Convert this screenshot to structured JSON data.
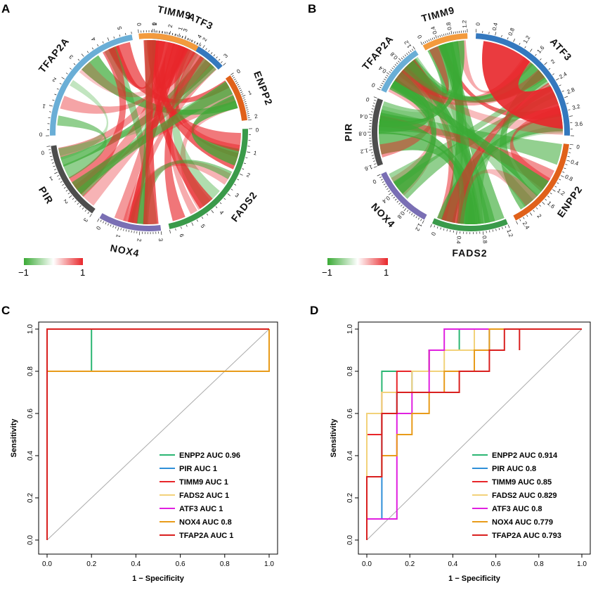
{
  "figure": {
    "panel_labels": [
      "A",
      "B",
      "C",
      "D"
    ],
    "colorbar_labels": [
      "−1",
      "1"
    ],
    "colors": {
      "negative": "#3aaa35",
      "positive": "#e8262a",
      "gray": "#aaaaaa"
    }
  },
  "chart_data": [
    {
      "panel": "A",
      "type": "chord",
      "title": "",
      "sectors": [
        {
          "name": "ATF3",
          "color": "#3478be",
          "max": 3.6,
          "ticks": [
            "0",
            "1",
            "2",
            "3"
          ]
        },
        {
          "name": "ENPP2",
          "color": "#e0611a",
          "max": 2.6,
          "ticks": [
            "0",
            "1",
            "2"
          ]
        },
        {
          "name": "FADS2",
          "color": "#3a9a4a",
          "max": 6.5,
          "ticks": [
            "0",
            "1",
            "2",
            "3",
            "4",
            "5",
            "6"
          ]
        },
        {
          "name": "NOX4",
          "color": "#7a6fb4",
          "max": 3.3,
          "ticks": [
            "3",
            "2",
            "1",
            "0"
          ]
        },
        {
          "name": "PIR",
          "color": "#4d4d4d",
          "max": 3.5,
          "ticks": [
            "3",
            "2",
            "1",
            "0"
          ]
        },
        {
          "name": "TFAP2A",
          "color": "#6aaed6",
          "max": 5.4,
          "ticks": [
            "0",
            "1",
            "2",
            "3",
            "4",
            "5"
          ]
        },
        {
          "name": "TIMM9",
          "color": "#f39a3c",
          "max": 4.4,
          "ticks": [
            "0",
            "1",
            "2",
            "3",
            "4"
          ]
        }
      ],
      "colorbar": {
        "min": -1,
        "max": 1
      }
    },
    {
      "panel": "B",
      "type": "chord",
      "title": "",
      "sectors": [
        {
          "name": "ATF3",
          "color": "#3478be",
          "max": 3.8,
          "ticks": [
            "0",
            "0.4",
            "0.8",
            "1.2",
            "1.6",
            "2",
            "2.4",
            "2.8",
            "3.2",
            "3.6"
          ]
        },
        {
          "name": "ENPP2",
          "color": "#e0611a",
          "max": 2.6,
          "ticks": [
            "0",
            "0.4",
            "0.8",
            "1.2",
            "1.6",
            "2",
            "2.4"
          ]
        },
        {
          "name": "FADS2",
          "color": "#3a9a4a",
          "max": 1.4,
          "ticks": [
            "1.2",
            "0.8",
            "0.4",
            "0"
          ]
        },
        {
          "name": "NOX4",
          "color": "#7a6fb4",
          "max": 1.4,
          "ticks": [
            "1.2",
            "0.8",
            "0.4",
            "0"
          ]
        },
        {
          "name": "PIR",
          "color": "#4d4d4d",
          "max": 1.7,
          "ticks": [
            "1.6",
            "1.2",
            "0.8",
            "0.4",
            "0"
          ]
        },
        {
          "name": "TFAP2A",
          "color": "#6aaed6",
          "max": 1.3,
          "ticks": [
            "0",
            "0.4",
            "0.8",
            "1.2"
          ]
        },
        {
          "name": "TIMM9",
          "color": "#f39a3c",
          "max": 1.3,
          "ticks": [
            "0",
            "0.4",
            "0.8",
            "1.2"
          ]
        }
      ],
      "colorbar": {
        "min": -1,
        "max": 1
      }
    },
    {
      "panel": "C",
      "type": "line",
      "title": "",
      "xlabel": "1 − Specificity",
      "ylabel": "Sensitivity",
      "xlim": [
        0,
        1
      ],
      "ylim": [
        0,
        1
      ],
      "xticks": [
        "0.0",
        "0.2",
        "0.4",
        "0.6",
        "0.8",
        "1.0"
      ],
      "yticks": [
        "0.0",
        "0.2",
        "0.4",
        "0.6",
        "0.8",
        "1.0"
      ],
      "legend_position": "bottom-right",
      "series": [
        {
          "name": "ENPP2 AUC 0.96",
          "color": "#2bb673",
          "points": [
            [
              0,
              0
            ],
            [
              0,
              0.8
            ],
            [
              0.2,
              0.8
            ],
            [
              0.2,
              1
            ],
            [
              1,
              1
            ]
          ]
        },
        {
          "name": "PIR AUC 1",
          "color": "#2f8fd8",
          "points": [
            [
              0,
              0
            ],
            [
              0,
              1
            ],
            [
              1,
              1
            ]
          ]
        },
        {
          "name": "TIMM9 AUC 1",
          "color": "#e8262a",
          "points": [
            [
              0,
              0
            ],
            [
              0,
              1
            ],
            [
              1,
              1
            ]
          ]
        },
        {
          "name": "FADS2 AUC 1",
          "color": "#f2d27a",
          "points": [
            [
              0,
              0
            ],
            [
              0,
              1
            ],
            [
              1,
              1
            ]
          ]
        },
        {
          "name": "ATF3 AUC 1",
          "color": "#e020e0",
          "points": [
            [
              0,
              0
            ],
            [
              0,
              1
            ],
            [
              1,
              1
            ]
          ]
        },
        {
          "name": "NOX4 AUC 0.8",
          "color": "#e89b1a",
          "points": [
            [
              0,
              0
            ],
            [
              0,
              0.8
            ],
            [
              1,
              0.8
            ],
            [
              1,
              1
            ]
          ]
        },
        {
          "name": "TFAP2A AUC 1",
          "color": "#d9201f",
          "points": [
            [
              0,
              0
            ],
            [
              0,
              1
            ],
            [
              1,
              1
            ]
          ]
        }
      ]
    },
    {
      "panel": "D",
      "type": "line",
      "title": "",
      "xlabel": "1 − Specificity",
      "ylabel": "Sensitivity",
      "xlim": [
        0,
        1
      ],
      "ylim": [
        0,
        1
      ],
      "xticks": [
        "0.0",
        "0.2",
        "0.4",
        "0.6",
        "0.8",
        "1.0"
      ],
      "yticks": [
        "0.0",
        "0.2",
        "0.4",
        "0.6",
        "0.8",
        "1.0"
      ],
      "legend_position": "bottom-right",
      "series": [
        {
          "name": "ENPP2 AUC 0.914",
          "color": "#2bb673",
          "points": [
            [
              0,
              0
            ],
            [
              0,
              0.3
            ],
            [
              0.07,
              0.3
            ],
            [
              0.07,
              0.8
            ],
            [
              0.29,
              0.8
            ],
            [
              0.29,
              0.9
            ],
            [
              0.43,
              0.9
            ],
            [
              0.43,
              1
            ],
            [
              1,
              1
            ]
          ]
        },
        {
          "name": "PIR AUC 0.8",
          "color": "#2f8fd8",
          "points": [
            [
              0,
              0
            ],
            [
              0,
              0.1
            ],
            [
              0.07,
              0.1
            ],
            [
              0.07,
              0.6
            ],
            [
              0.14,
              0.6
            ],
            [
              0.14,
              0.7
            ],
            [
              0.21,
              0.7
            ],
            [
              0.21,
              0.8
            ],
            [
              0.5,
              0.8
            ],
            [
              0.5,
              0.9
            ],
            [
              0.57,
              0.9
            ],
            [
              0.57,
              1
            ],
            [
              1,
              1
            ]
          ]
        },
        {
          "name": "TIMM9 AUC 0.85",
          "color": "#e8262a",
          "points": [
            [
              0,
              0
            ],
            [
              0,
              0.5
            ],
            [
              0.07,
              0.5
            ],
            [
              0.07,
              0.7
            ],
            [
              0.14,
              0.7
            ],
            [
              0.14,
              0.8
            ],
            [
              0.29,
              0.8
            ],
            [
              0.29,
              0.9
            ],
            [
              0.5,
              0.9
            ],
            [
              0.5,
              1
            ],
            [
              1,
              1
            ]
          ]
        },
        {
          "name": "FADS2 AUC 0.829",
          "color": "#f2d27a",
          "points": [
            [
              0,
              0
            ],
            [
              0,
              0.6
            ],
            [
              0.07,
              0.6
            ],
            [
              0.07,
              0.7
            ],
            [
              0.21,
              0.7
            ],
            [
              0.21,
              0.8
            ],
            [
              0.36,
              0.8
            ],
            [
              0.36,
              0.9
            ],
            [
              0.5,
              0.9
            ],
            [
              0.5,
              1
            ],
            [
              1,
              1
            ]
          ]
        },
        {
          "name": "ATF3 AUC 0.8",
          "color": "#e020e0",
          "points": [
            [
              0,
              0
            ],
            [
              0,
              0.1
            ],
            [
              0.14,
              0.1
            ],
            [
              0.14,
              0.6
            ],
            [
              0.21,
              0.6
            ],
            [
              0.21,
              0.7
            ],
            [
              0.29,
              0.7
            ],
            [
              0.29,
              0.9
            ],
            [
              0.36,
              0.9
            ],
            [
              0.36,
              1
            ],
            [
              1,
              1
            ]
          ]
        },
        {
          "name": "NOX4 AUC 0.779",
          "color": "#e89b1a",
          "points": [
            [
              0,
              0
            ],
            [
              0,
              0.3
            ],
            [
              0.07,
              0.3
            ],
            [
              0.07,
              0.4
            ],
            [
              0.14,
              0.4
            ],
            [
              0.14,
              0.5
            ],
            [
              0.21,
              0.5
            ],
            [
              0.21,
              0.6
            ],
            [
              0.29,
              0.6
            ],
            [
              0.29,
              0.7
            ],
            [
              0.36,
              0.7
            ],
            [
              0.36,
              0.8
            ],
            [
              0.5,
              0.8
            ],
            [
              0.5,
              0.9
            ],
            [
              0.57,
              0.9
            ],
            [
              0.57,
              1
            ],
            [
              1,
              1
            ]
          ]
        },
        {
          "name": "TFAP2A AUC 0.793",
          "color": "#d9201f",
          "points": [
            [
              0,
              0
            ],
            [
              0,
              0.3
            ],
            [
              0.07,
              0.3
            ],
            [
              0.07,
              0.6
            ],
            [
              0.14,
              0.6
            ],
            [
              0.14,
              0.7
            ],
            [
              0.43,
              0.7
            ],
            [
              0.43,
              0.8
            ],
            [
              0.57,
              0.8
            ],
            [
              0.57,
              0.9
            ],
            [
              0.64,
              0.9
            ],
            [
              0.64,
              1
            ],
            [
              0.71,
              1
            ],
            [
              0.71,
              0.9
            ],
            [
              0.71,
              1
            ],
            [
              1,
              1
            ]
          ]
        }
      ]
    }
  ]
}
